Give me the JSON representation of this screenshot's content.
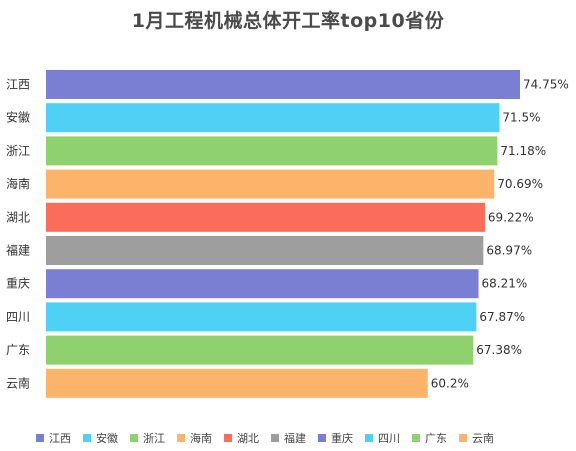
{
  "chart_data": {
    "type": "bar",
    "orientation": "horizontal",
    "title": "1月工程机械总体开工率top10省份",
    "categories": [
      "江西",
      "安徽",
      "浙江",
      "海南",
      "湖北",
      "福建",
      "重庆",
      "四川",
      "广东",
      "云南"
    ],
    "values": [
      74.75,
      71.5,
      71.18,
      70.69,
      69.22,
      68.97,
      68.21,
      67.87,
      67.38,
      60.2
    ],
    "value_labels": [
      "74.75%",
      "71.5%",
      "71.18%",
      "70.69%",
      "69.22%",
      "68.97%",
      "68.21%",
      "67.87%",
      "67.38%",
      "60.2%"
    ],
    "colors": [
      "#7b7fd4",
      "#4fd0f5",
      "#8fd16e",
      "#fbb46a",
      "#fb6c5a",
      "#9e9e9e",
      "#7b7fd4",
      "#4fd0f5",
      "#8fd16e",
      "#fbb46a"
    ],
    "xlim": [
      0,
      74.75
    ],
    "grid": false,
    "legend_position": "bottom",
    "legend": [
      {
        "label": "江西",
        "color": "#7b7fd4"
      },
      {
        "label": "安徽",
        "color": "#4fd0f5"
      },
      {
        "label": "浙江",
        "color": "#8fd16e"
      },
      {
        "label": "海南",
        "color": "#fbb46a"
      },
      {
        "label": "湖北",
        "color": "#fb6c5a"
      },
      {
        "label": "福建",
        "color": "#9e9e9e"
      },
      {
        "label": "重庆",
        "color": "#7b7fd4"
      },
      {
        "label": "四川",
        "color": "#4fd0f5"
      },
      {
        "label": "广东",
        "color": "#8fd16e"
      },
      {
        "label": "云南",
        "color": "#fbb46a"
      }
    ]
  }
}
